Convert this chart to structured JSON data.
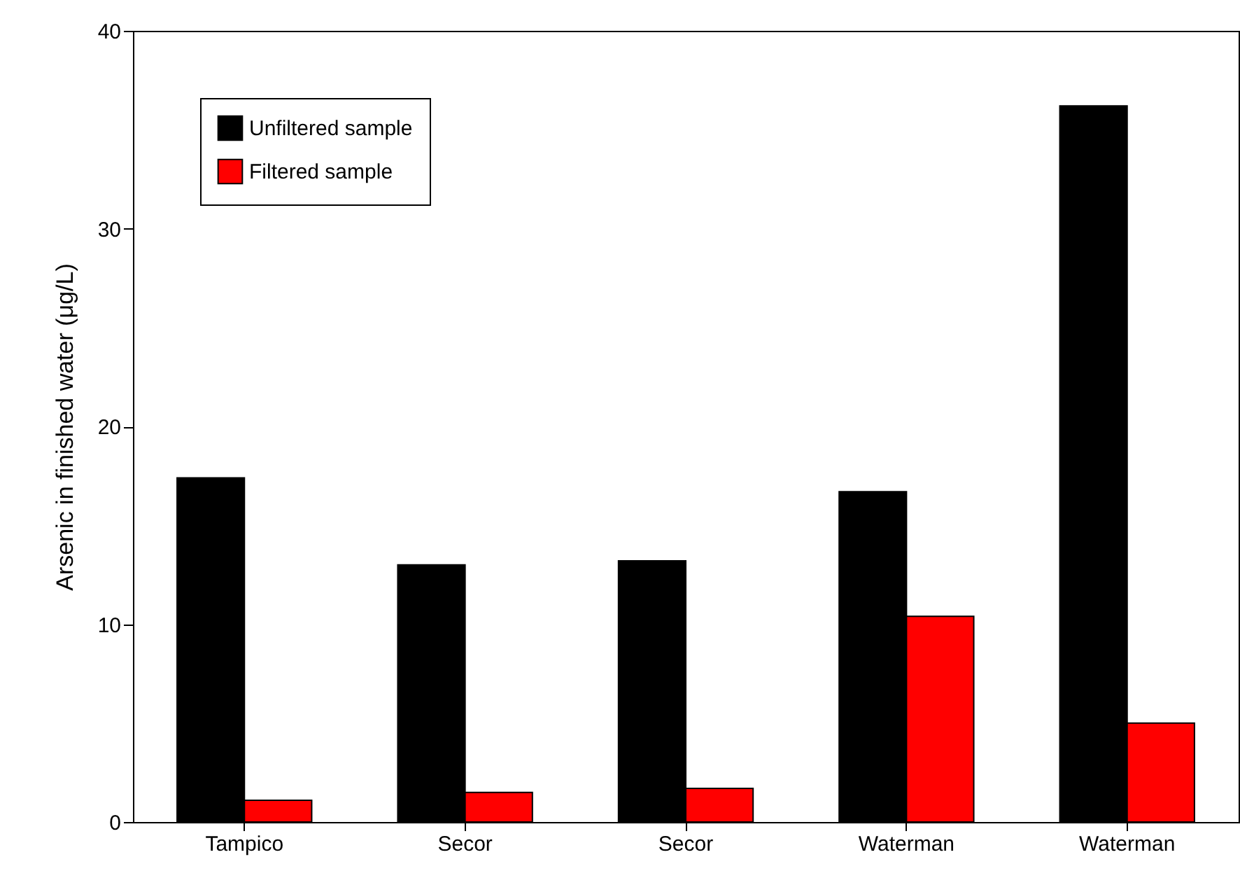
{
  "chart_data": {
    "type": "bar",
    "ylabel": "Arsenic in finished water (μg/L)",
    "categories": [
      "Tampico",
      "Secor",
      "Secor",
      "Waterman",
      "Waterman"
    ],
    "series": [
      {
        "name": "Unfiltered sample",
        "color": "#000000",
        "values": [
          17.4,
          13.0,
          13.2,
          16.7,
          36.2
        ]
      },
      {
        "name": "Filtered sample",
        "color": "#ff0000",
        "values": [
          1.1,
          1.5,
          1.7,
          10.4,
          5.0
        ]
      }
    ],
    "ylim": [
      0,
      40
    ],
    "yticks": [
      0,
      10,
      20,
      30,
      40
    ],
    "legend": "top left"
  }
}
